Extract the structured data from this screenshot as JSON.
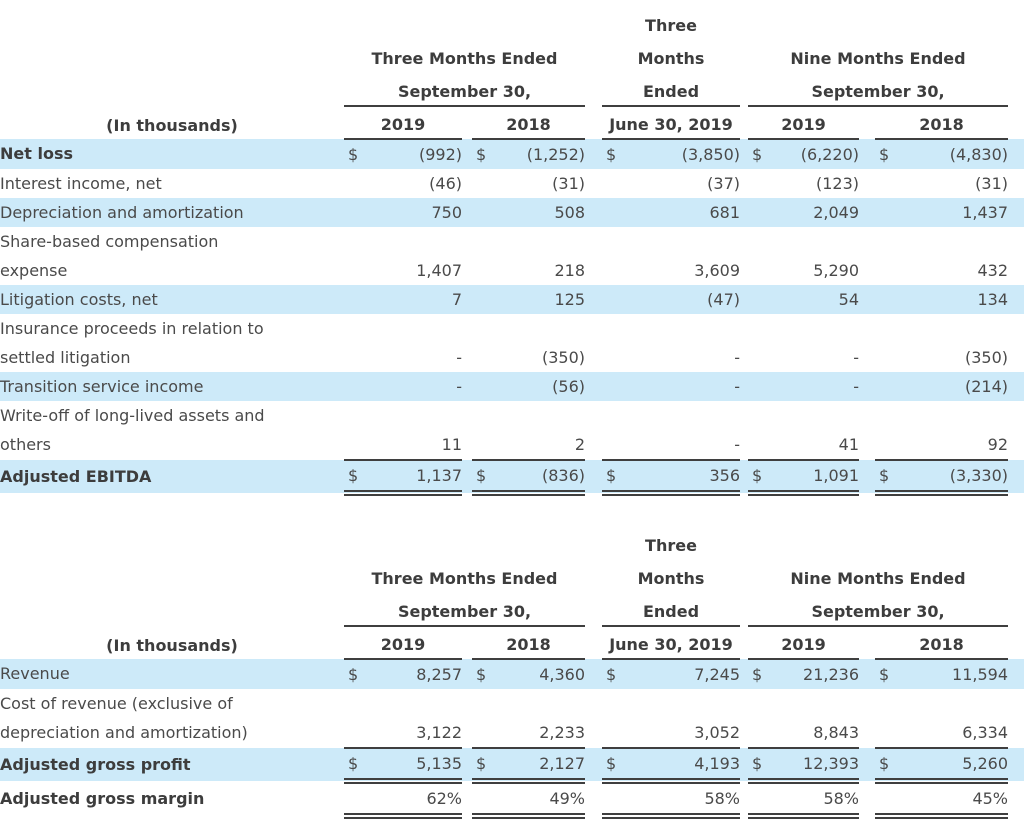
{
  "style": {
    "highlight_color": "#cdeaf9",
    "rule_color": "#3f3f3f",
    "text_color": "#4a4a4a",
    "bold_text_color": "#3d3d3d"
  },
  "tables": [
    {
      "name": "adjusted-ebitda-reconciliation",
      "in_thousands_label": "(In thousands)",
      "column_groups": [
        {
          "top": "",
          "mid": "Three Months Ended",
          "bottom": "September 30,"
        },
        {
          "top": "Three",
          "mid": "Months",
          "bottom": "Ended"
        },
        {
          "top": "",
          "mid": "Nine Months Ended",
          "bottom": "September 30,"
        }
      ],
      "year_headers": [
        "2019",
        "2018",
        "June 30, 2019",
        "2019",
        "2018"
      ],
      "rows": [
        {
          "label_lines": [
            "Net loss"
          ],
          "bold": true,
          "highlight": true,
          "dollar": true,
          "values": [
            "(992)",
            "(1,252)",
            "(3,850)",
            "(6,220)",
            "(4,830)"
          ]
        },
        {
          "label_lines": [
            "Interest income, net"
          ],
          "bold": false,
          "highlight": false,
          "dollar": false,
          "values": [
            "(46)",
            "(31)",
            "(37)",
            "(123)",
            "(31)"
          ]
        },
        {
          "label_lines": [
            "Depreciation and amortization"
          ],
          "bold": false,
          "highlight": true,
          "dollar": false,
          "values": [
            "750",
            "508",
            "681",
            "2,049",
            "1,437"
          ]
        },
        {
          "label_lines": [
            "Share-based compensation",
            "expense"
          ],
          "bold": false,
          "highlight": false,
          "dollar": false,
          "values": [
            "1,407",
            "218",
            "3,609",
            "5,290",
            "432"
          ]
        },
        {
          "label_lines": [
            "Litigation costs, net"
          ],
          "bold": false,
          "highlight": true,
          "dollar": false,
          "values": [
            "7",
            "125",
            "(47)",
            "54",
            "134"
          ]
        },
        {
          "label_lines": [
            "Insurance proceeds in relation to",
            "settled litigation"
          ],
          "bold": false,
          "highlight": false,
          "dollar": false,
          "values": [
            "-",
            "(350)",
            "-",
            "-",
            "(350)"
          ]
        },
        {
          "label_lines": [
            "Transition service income"
          ],
          "bold": false,
          "highlight": true,
          "dollar": false,
          "values": [
            "-",
            "(56)",
            "-",
            "-",
            "(214)"
          ]
        },
        {
          "label_lines": [
            "Write-off of long-lived assets and",
            "others"
          ],
          "bold": false,
          "highlight": false,
          "dollar": false,
          "values": [
            "11",
            "2",
            "-",
            "41",
            "92"
          ],
          "rule_below": "single"
        },
        {
          "label_lines": [
            "Adjusted EBITDA"
          ],
          "bold": true,
          "highlight": true,
          "dollar": true,
          "values": [
            "1,137",
            "(836)",
            "356",
            "1,091",
            "(3,330)"
          ],
          "rule_below": "double"
        }
      ]
    },
    {
      "name": "adjusted-gross-profit",
      "in_thousands_label": "(In thousands)",
      "column_groups": [
        {
          "top": "",
          "mid": "Three Months Ended",
          "bottom": "September 30,"
        },
        {
          "top": "Three",
          "mid": "Months",
          "bottom": "Ended"
        },
        {
          "top": "",
          "mid": "Nine Months Ended",
          "bottom": "September 30,"
        }
      ],
      "year_headers": [
        "2019",
        "2018",
        "June 30, 2019",
        "2019",
        "2018"
      ],
      "rows": [
        {
          "label_lines": [
            "Revenue"
          ],
          "bold": false,
          "highlight": true,
          "dollar": true,
          "values": [
            "8,257",
            "4,360",
            "7,245",
            "21,236",
            "11,594"
          ]
        },
        {
          "label_lines": [
            "Cost of revenue (exclusive of",
            "depreciation and amortization)"
          ],
          "bold": false,
          "highlight": false,
          "dollar": false,
          "values": [
            "3,122",
            "2,233",
            "3,052",
            "8,843",
            "6,334"
          ],
          "rule_below": "single"
        },
        {
          "label_lines": [
            "Adjusted gross profit"
          ],
          "bold": true,
          "highlight": true,
          "dollar": true,
          "values": [
            "5,135",
            "2,127",
            "4,193",
            "12,393",
            "5,260"
          ],
          "rule_below": "double"
        },
        {
          "label_lines": [
            "Adjusted gross margin"
          ],
          "bold": true,
          "highlight": false,
          "dollar": false,
          "values": [
            "62%",
            "49%",
            "58%",
            "58%",
            "45%"
          ],
          "rule_below": "double"
        }
      ]
    }
  ]
}
